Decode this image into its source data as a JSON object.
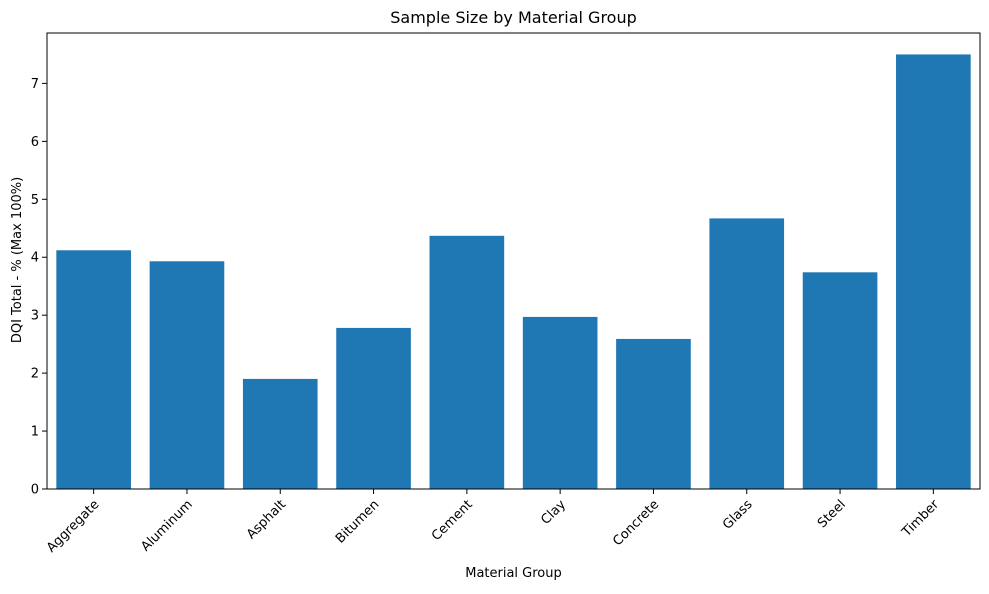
{
  "chart_data": {
    "type": "bar",
    "title": "Sample Size by Material Group",
    "xlabel": "Material Group",
    "ylabel": "DQI Total - % (Max 100%)",
    "categories": [
      "Aggregate",
      "Aluminum",
      "Asphalt",
      "Bitumen",
      "Cement",
      "Clay",
      "Concrete",
      "Glass",
      "Steel",
      "Timber"
    ],
    "values": [
      4.12,
      3.93,
      1.9,
      2.78,
      4.37,
      2.97,
      2.59,
      4.67,
      3.74,
      7.5
    ],
    "ylim": [
      0,
      7.87
    ],
    "yticks": [
      0,
      1,
      2,
      3,
      4,
      5,
      6,
      7
    ],
    "bar_color": "#1f77b4",
    "grid": false,
    "legend": "none",
    "xtick_rotation": 45
  }
}
